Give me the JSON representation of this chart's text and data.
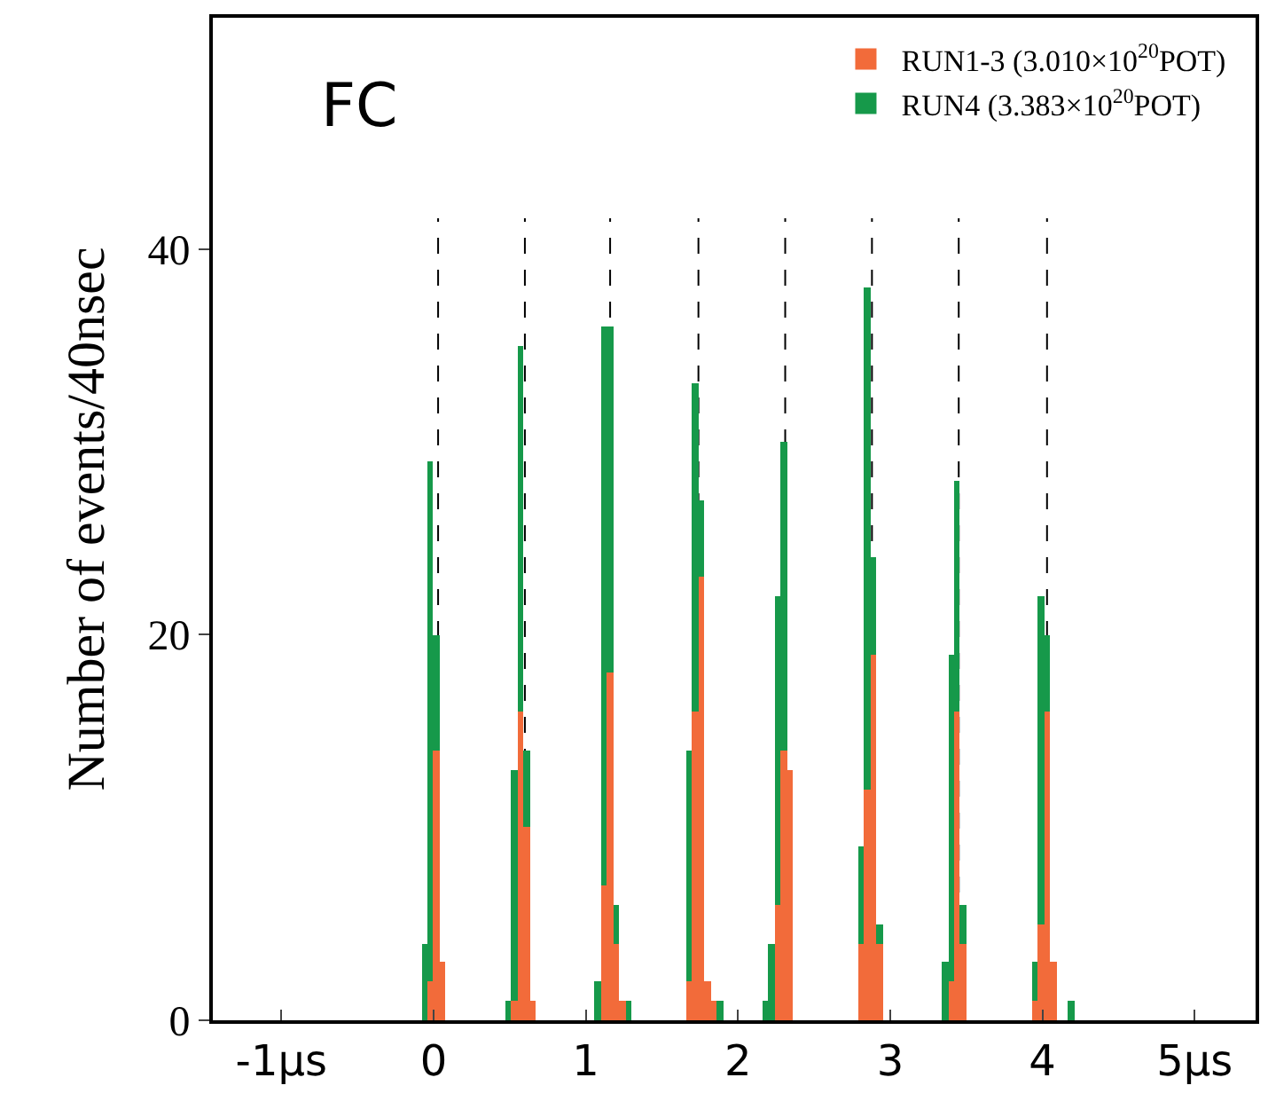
{
  "chart_data": {
    "type": "bar",
    "stacked": true,
    "ylabel": "Number of events/40nsec",
    "annotations": [
      "FC"
    ],
    "x": [
      -0.06,
      -0.02,
      0.02,
      0.06,
      0.49,
      0.53,
      0.57,
      0.61,
      0.65,
      1.08,
      1.12,
      1.16,
      1.2,
      1.24,
      1.28,
      1.68,
      1.72,
      1.76,
      1.8,
      1.84,
      1.88,
      2.18,
      2.22,
      2.26,
      2.3,
      2.34,
      2.81,
      2.85,
      2.89,
      2.93,
      3.36,
      3.4,
      3.44,
      3.48,
      3.95,
      3.99,
      4.03,
      4.07,
      4.11,
      4.15,
      4.19
    ],
    "series": [
      {
        "name": "RUN1-3 (3.010×10$^{20}$POT)",
        "color": "#f26b3a",
        "values": [
          0,
          2,
          14,
          3,
          0,
          1,
          16,
          10,
          1,
          0,
          7,
          18,
          4,
          1,
          0,
          2,
          16,
          23,
          2,
          1,
          0,
          0,
          0,
          6,
          14,
          13,
          4,
          12,
          19,
          4,
          0,
          2,
          16,
          4,
          1,
          5,
          16,
          3,
          0,
          0,
          0
        ]
      },
      {
        "name": "RUN4 (3.383×10$^{20}$POT)",
        "color": "#16994a",
        "values": [
          4,
          27,
          6,
          0,
          1,
          12,
          19,
          4,
          0,
          2,
          29,
          18,
          2,
          0,
          1,
          12,
          17,
          4,
          0,
          0,
          1,
          1,
          4,
          16,
          16,
          0,
          5,
          26,
          5,
          1,
          3,
          17,
          12,
          2,
          2,
          17,
          4,
          0,
          0,
          0,
          1
        ]
      }
    ],
    "xlim": [
      -1.45,
      5.4
    ],
    "xticks": [
      {
        "value": -1,
        "label": "-1μs"
      },
      0,
      1,
      2,
      3,
      4,
      {
        "value": 5,
        "label": "5μs"
      }
    ],
    "ylim": [
      0,
      52
    ],
    "yticks": [
      0,
      20,
      40
    ],
    "ref_lines": [
      {
        "axis": "x",
        "value": 0.03,
        "line_style": "dashed",
        "color": "#000000"
      },
      {
        "axis": "x",
        "value": 0.6,
        "line_style": "dashed",
        "color": "#000000"
      },
      {
        "axis": "x",
        "value": 1.16,
        "line_style": "dashed",
        "color": "#000000"
      },
      {
        "axis": "x",
        "value": 1.74,
        "line_style": "dashed",
        "color": "#000000"
      },
      {
        "axis": "x",
        "value": 2.31,
        "line_style": "dashed",
        "color": "#000000"
      },
      {
        "axis": "x",
        "value": 2.88,
        "line_style": "dashed",
        "color": "#000000"
      },
      {
        "axis": "x",
        "value": 3.45,
        "line_style": "dashed",
        "color": "#000000"
      },
      {
        "axis": "x",
        "value": 4.03,
        "line_style": "dashed",
        "color": "#000000"
      }
    ],
    "legend": "top right",
    "grid": false
  }
}
